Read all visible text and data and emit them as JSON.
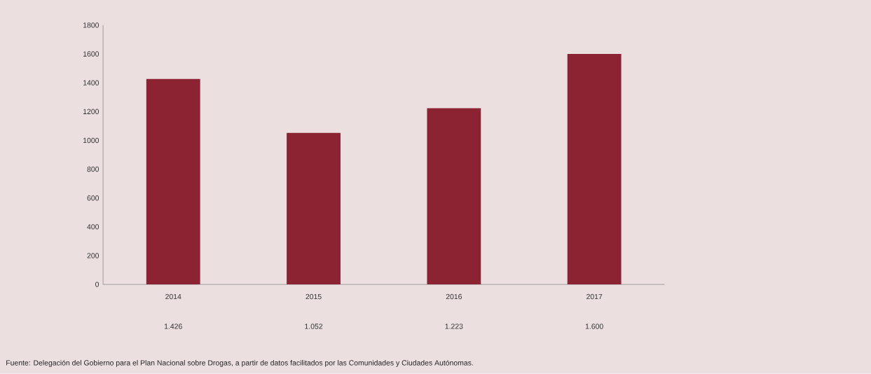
{
  "chart_data": {
    "type": "bar",
    "categories": [
      "2014",
      "2015",
      "2016",
      "2017"
    ],
    "values": [
      1426,
      1052,
      1223,
      1600
    ],
    "value_labels": [
      "1.426",
      "1.052",
      "1.223",
      "1.600"
    ],
    "color": "#8b2332",
    "ylim": [
      0,
      1800
    ],
    "yticks": [
      0,
      200,
      400,
      600,
      800,
      1000,
      1200,
      1400,
      1600,
      1800
    ],
    "grid": false,
    "annotations": [
      "Fuente: Delegación del Gobierno para el Plan Nacional sobre Drogas, a partir de datos facilitados por las Comunidades y Ciudades Autónomas."
    ]
  }
}
